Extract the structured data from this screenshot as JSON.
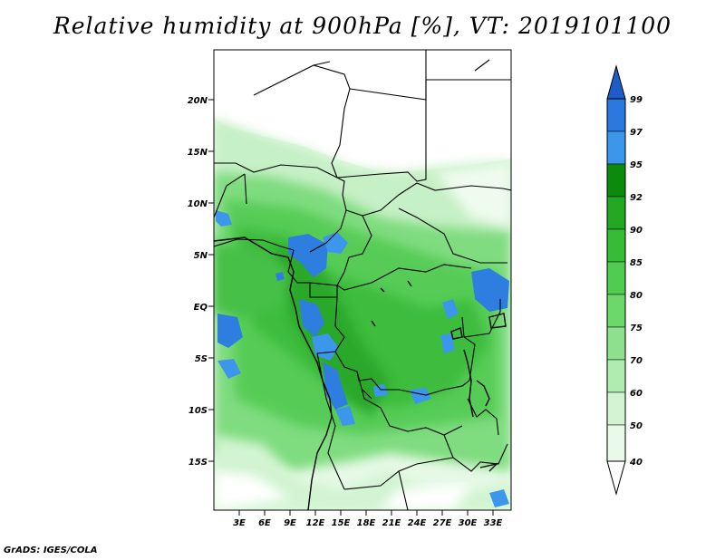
{
  "title": "Relative humidity at 900hPa [%], VT: 2019101100",
  "footer": "GrADS: IGES/COLA",
  "map": {
    "lat_labels": [
      "20N",
      "15N",
      "10N",
      "5N",
      "EQ",
      "5S",
      "10S",
      "15S"
    ],
    "lon_labels": [
      "3E",
      "6E",
      "9E",
      "12E",
      "15E",
      "18E",
      "21E",
      "24E",
      "27E",
      "30E",
      "33E"
    ]
  },
  "colorbar": {
    "levels": [
      "99",
      "97",
      "95",
      "92",
      "90",
      "85",
      "80",
      "75",
      "70",
      "60",
      "50",
      "40"
    ],
    "colors": [
      "#1e5cc8",
      "#2b78de",
      "#3c96ec",
      "#0c8a0c",
      "#22a822",
      "#36bc36",
      "#50cc50",
      "#6cd86c",
      "#8ee08e",
      "#b0ecb0",
      "#d2f4d2",
      "#eafaea",
      "#ffffff"
    ]
  }
}
